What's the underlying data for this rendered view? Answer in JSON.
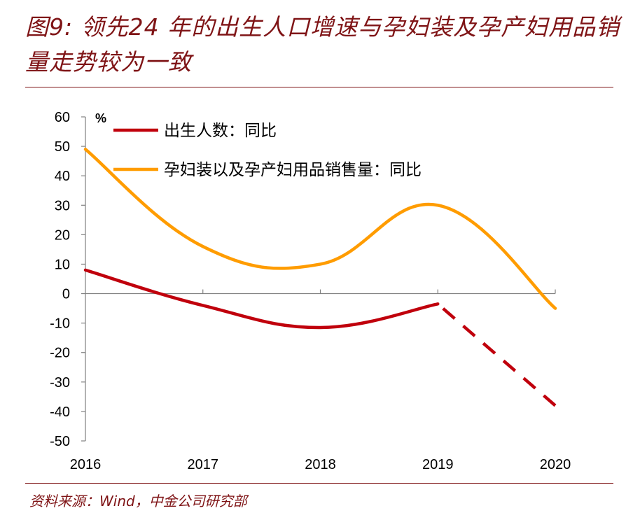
{
  "header": {
    "title": "图9: 领先24 年的出生人口增速与孕妇装及孕产妇用品销量走势较为一致"
  },
  "footer": {
    "source": "资料来源：Wind，中金公司研究部"
  },
  "colors": {
    "accent": "#7f1416",
    "series_birth": "#c0000c",
    "series_maternity": "#ff9c00"
  },
  "chart_data": {
    "type": "line",
    "x": [
      "2016",
      "2017",
      "2018",
      "2019",
      "2020"
    ],
    "ylim": [
      -50,
      60
    ],
    "yticks": [
      60,
      50,
      40,
      30,
      20,
      10,
      0,
      -10,
      -20,
      -30,
      -40,
      -50
    ],
    "unit": "%",
    "grid": false,
    "legend_position": "top-left",
    "series": [
      {
        "name": "出生人数：同比",
        "values": [
          8,
          -4,
          -11.5,
          -3.5,
          -38
        ],
        "dashed_from_index": 3,
        "color": "#c0000c"
      },
      {
        "name": "孕妇装以及孕产妇用品销售量：同比",
        "values": [
          49,
          16,
          10,
          30,
          -5
        ],
        "color": "#ff9c00"
      }
    ]
  }
}
